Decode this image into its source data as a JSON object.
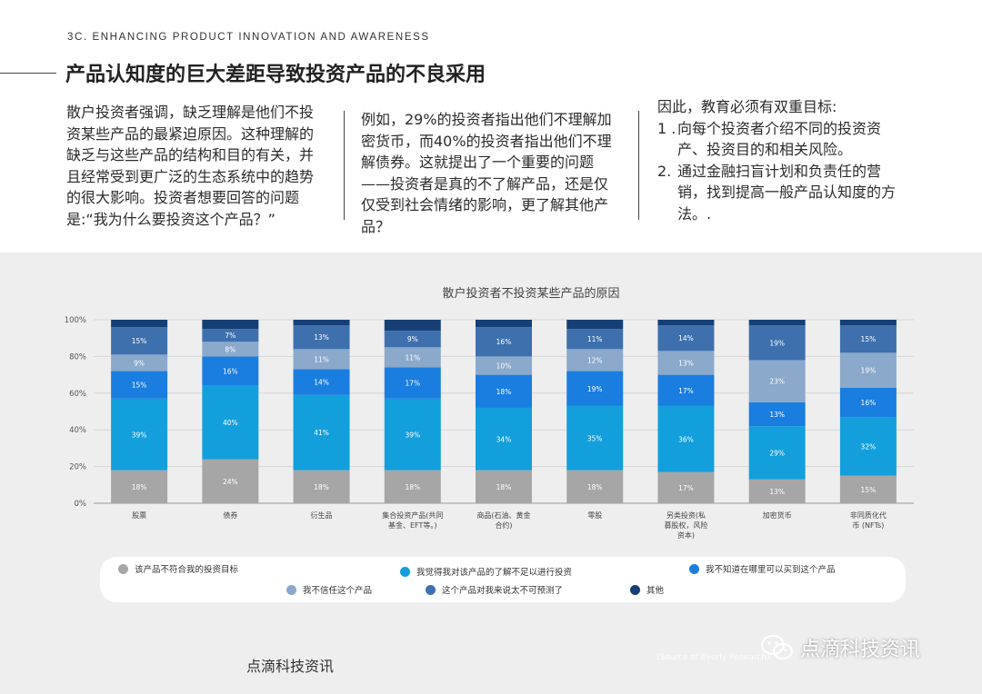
{
  "header": {
    "section_label": "3C. ENHANCING PRODUCT INNOVATION AND AWARENESS",
    "title": "产品认知度的巨大差距导致投资产品的不良采用"
  },
  "columns": {
    "col1": "散户投资者强调，缺乏理解是他们不投资某些产品的最紧迫原因。这种理解的缺乏与这些产品的结构和目的有关，并且经常受到更广泛的生态系统中的趋势的很大影响。投资者想要回答的问题是:“我为什么要投资这个产品？”",
    "col2": "例如，29%的投资者指出他们不理解加密货币，而40%的投资者指出他们不理解债券。这就提出了一个重要的问题——投资者是真的不了解产品，还是仅仅受到社会情绪的影响，更了解其他产品？",
    "col3_intro": "因此，教育必须有双重目标:",
    "col3_items": [
      {
        "num": "1 .",
        "text": "向每个投资者介绍不同的投资资产、投资目的和相关风险。"
      },
      {
        "num": "2.",
        "text": "通过金融扫盲计划和负责任的营销，找到提高一般产品认知度的方法。."
      }
    ]
  },
  "chart_data": {
    "type": "bar",
    "stacked": true,
    "title": "散户投资者不投资某些产品的原因",
    "ylim": [
      0,
      100
    ],
    "ytick_labels": [
      "0%",
      "20%",
      "40%",
      "60%",
      "80%",
      "100%"
    ],
    "categories": [
      [
        "股票"
      ],
      [
        "债券"
      ],
      [
        "衍生品"
      ],
      [
        "集合投资产品(共同",
        "基金、EFT等。)"
      ],
      [
        "商品(石油、黄金",
        "合约)"
      ],
      [
        "零股"
      ],
      [
        "另类投资(私",
        "募股权，风险",
        "资本)"
      ],
      [
        "加密货币"
      ],
      [
        "非同质化代",
        "币 (NFTs)"
      ]
    ],
    "series": [
      {
        "name": "该产品不符合我的投资目标",
        "color": "#a6a6a6",
        "values": [
          18,
          24,
          18,
          18,
          18,
          18,
          17,
          13,
          15
        ]
      },
      {
        "name": "我觉得我对该产品的了解不足以进行投资",
        "color": "#139fdc",
        "values": [
          39,
          40,
          41,
          39,
          34,
          35,
          36,
          29,
          32
        ]
      },
      {
        "name": "我不知道在哪里可以买到这个产品",
        "color": "#1a7de0",
        "values": [
          15,
          16,
          14,
          17,
          18,
          19,
          17,
          13,
          16
        ]
      },
      {
        "name": "我不信任这个产品",
        "color": "#8aa9cb",
        "values": [
          9,
          8,
          11,
          11,
          10,
          12,
          13,
          23,
          19
        ]
      },
      {
        "name": "这个产品对我来说太不可预测了",
        "color": "#3e70ae",
        "values": [
          15,
          7,
          13,
          9,
          16,
          11,
          14,
          19,
          15
        ]
      },
      {
        "name": "其他",
        "color": "#163f75",
        "values": [
          4,
          5,
          3,
          6,
          4,
          5,
          3,
          3,
          3
        ]
      }
    ],
    "data_label_series": [
      0,
      1,
      2,
      3,
      4
    ],
    "legend_position": "bottom"
  },
  "footer": {
    "brand": "点滴科技资讯",
    "watermark": "点滴科技资讯",
    "source_note": "(Source of Everly Research)"
  }
}
